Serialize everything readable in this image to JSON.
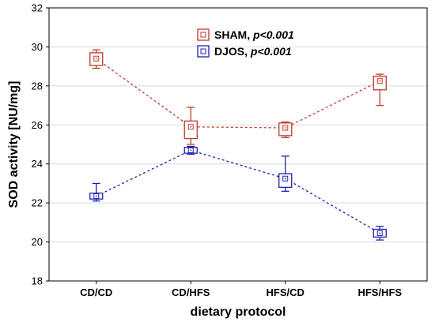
{
  "chart_data": {
    "type": "line",
    "xlabel": "dietary protocol",
    "ylabel": "SOD activity [NU/mg]",
    "categories": [
      "CD/CD",
      "CD/HFS",
      "HFS/CD",
      "HFS/HFS"
    ],
    "ylim": [
      18,
      32
    ],
    "yticks": [
      18,
      20,
      22,
      24,
      26,
      28,
      30,
      32
    ],
    "grid": "horizontal",
    "legend_position": "top-center",
    "series": [
      {
        "name": "SHAM",
        "p_label": "p<0.001",
        "color": "#c0392b",
        "means": [
          29.4,
          25.9,
          25.85,
          28.25
        ],
        "box_low": [
          29.05,
          25.3,
          25.45,
          27.8
        ],
        "box_high": [
          29.7,
          26.2,
          26.1,
          28.5
        ],
        "whisker_low": [
          28.9,
          25.0,
          25.35,
          27.0
        ],
        "whisker_high": [
          29.85,
          26.9,
          26.15,
          28.6
        ]
      },
      {
        "name": "DJOS",
        "p_label": "p<0.001",
        "color": "#2020b0",
        "means": [
          22.35,
          24.7,
          23.25,
          20.45
        ],
        "box_low": [
          22.2,
          24.55,
          22.8,
          20.25
        ],
        "box_high": [
          22.5,
          24.85,
          23.5,
          20.65
        ],
        "whisker_low": [
          22.1,
          24.5,
          22.6,
          20.1
        ],
        "whisker_high": [
          23.0,
          24.9,
          24.4,
          20.8
        ]
      }
    ]
  }
}
